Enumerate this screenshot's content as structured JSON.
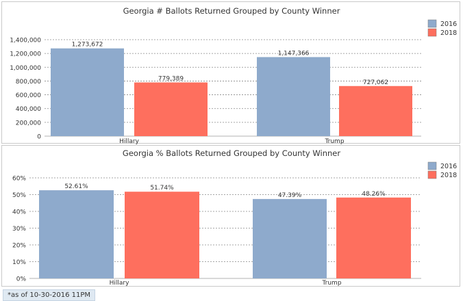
{
  "chart_data": [
    {
      "type": "bar",
      "title": "Georgia # Ballots Returned Grouped by County Winner",
      "categories": [
        "Hillary",
        "Trump"
      ],
      "series": [
        {
          "name": "2016",
          "values": [
            1273672,
            1147366
          ],
          "labels": [
            "1,273,672",
            "1,147,366"
          ],
          "color": "#8eaacc"
        },
        {
          "name": "2018",
          "values": [
            779389,
            727062
          ],
          "labels": [
            "779,389",
            "727,062"
          ],
          "color": "#fe6f5e"
        }
      ],
      "ylim": [
        0,
        1400000
      ],
      "yticks": [
        "0",
        "200,000",
        "400,000",
        "600,000",
        "800,000",
        "1,000,000",
        "1,200,000",
        "1,400,000"
      ],
      "ytick_values": [
        0,
        200000,
        400000,
        600000,
        800000,
        1000000,
        1200000,
        1400000
      ],
      "grid": true,
      "legend": "top-right"
    },
    {
      "type": "bar",
      "title": "Georgia % Ballots Returned Grouped by County Winner",
      "categories": [
        "Hillary",
        "Trump"
      ],
      "series": [
        {
          "name": "2016",
          "values": [
            52.61,
            47.39
          ],
          "labels": [
            "52.61%",
            "47.39%"
          ],
          "color": "#8eaacc"
        },
        {
          "name": "2018",
          "values": [
            51.74,
            48.26
          ],
          "labels": [
            "51.74%",
            "48.26%"
          ],
          "color": "#fe6f5e"
        }
      ],
      "ylim": [
        0,
        60
      ],
      "yticks": [
        "0%",
        "10%",
        "20%",
        "30%",
        "40%",
        "50%",
        "60%"
      ],
      "ytick_values": [
        0,
        10,
        20,
        30,
        40,
        50,
        60
      ],
      "grid": true,
      "legend": "top-right"
    }
  ],
  "footnote": "*as of 10-30-2016 11PM"
}
